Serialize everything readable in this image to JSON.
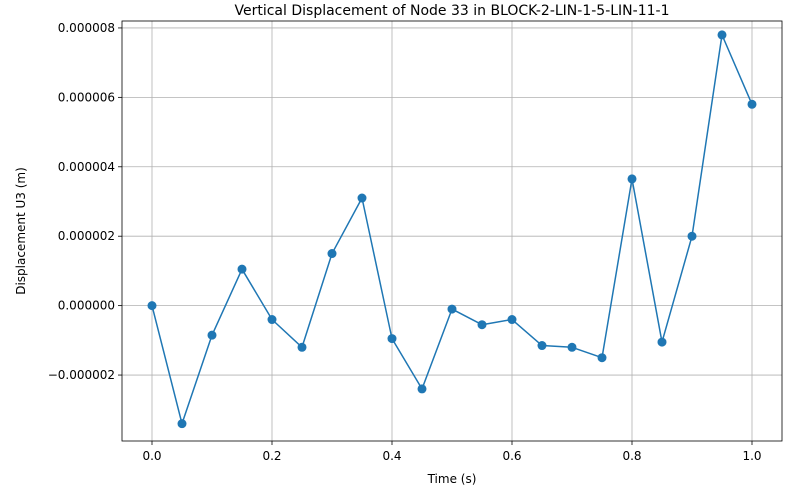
{
  "chart_data": {
    "type": "line",
    "title": "Vertical Displacement of Node 33 in BLOCK-2-LIN-1-5-LIN-11-1",
    "xlabel": "Time (s)",
    "ylabel": "Displacement U3 (m)",
    "xlim": [
      -0.05,
      1.05
    ],
    "ylim": [
      -3.9e-06,
      8.2e-06
    ],
    "grid": true,
    "legend": "none",
    "x_ticks": [
      0.0,
      0.2,
      0.4,
      0.6,
      0.8,
      1.0
    ],
    "x_tick_labels": [
      "0.0",
      "0.2",
      "0.4",
      "0.6",
      "0.8",
      "1.0"
    ],
    "y_ticks": [
      -2e-06,
      0.0,
      2e-06,
      4e-06,
      6e-06,
      8e-06
    ],
    "y_tick_labels": [
      "−0.000002",
      "0.000000",
      "0.000002",
      "0.000004",
      "0.000006",
      "0.000008"
    ],
    "series": [
      {
        "color": "#1f77b4",
        "marker": "circle",
        "x": [
          0.0,
          0.05,
          0.1,
          0.15,
          0.2,
          0.25,
          0.3,
          0.35,
          0.4,
          0.45,
          0.5,
          0.55,
          0.6,
          0.65,
          0.7,
          0.75,
          0.8,
          0.85,
          0.9,
          0.95,
          1.0
        ],
        "y": [
          0.0,
          -3.4e-06,
          -8.5e-07,
          1.05e-06,
          -4e-07,
          -1.2e-06,
          1.5e-06,
          3.1e-06,
          -9.5e-07,
          -2.4e-06,
          -1e-07,
          -5.5e-07,
          -4e-07,
          -1.15e-06,
          -1.2e-06,
          -1.5e-06,
          3.65e-06,
          -1.05e-06,
          2e-06,
          7.8e-06,
          5.8e-06
        ]
      }
    ]
  }
}
